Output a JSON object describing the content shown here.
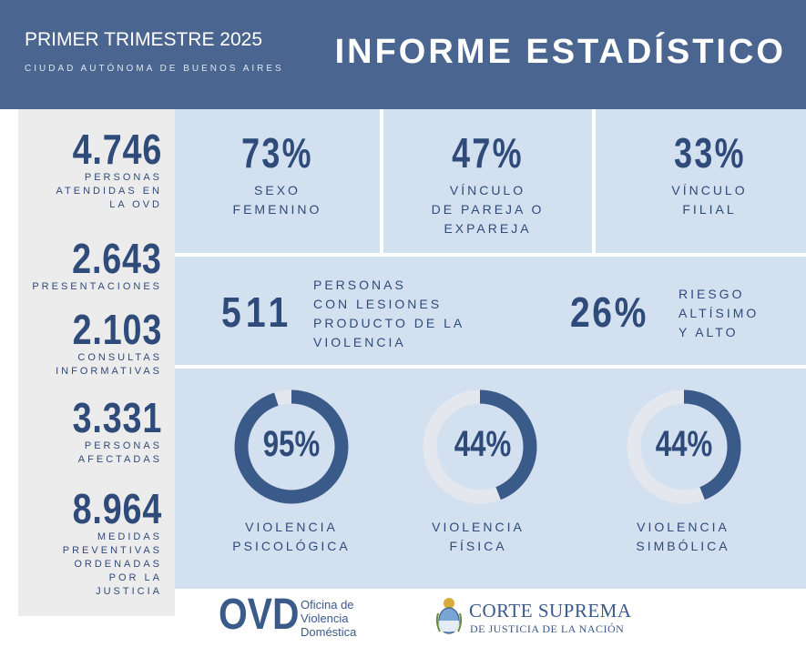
{
  "header": {
    "period": "PRIMER TRIMESTRE 2025",
    "city": "CIUDAD AUTÓNOMA DE BUENOS AIRES",
    "title": "INFORME ESTADÍSTICO"
  },
  "left_stats": [
    {
      "value": "4.746",
      "label": "PERSONAS\nATENDIDAS EN\nLA OVD"
    },
    {
      "value": "2.643",
      "label": "PRESENTACIONES"
    },
    {
      "value": "2.103",
      "label": "CONSULTAS\nINFORMATIVAS"
    },
    {
      "value": "3.331",
      "label": "PERSONAS\nAFECTADAS"
    },
    {
      "value": "8.964",
      "label": "MEDIDAS\nPREVENTIVAS\nORDENADAS\nPOR LA\nJUSTICIA"
    }
  ],
  "top_stats": [
    {
      "value": "73%",
      "label": "SEXO\nFEMENINO"
    },
    {
      "value": "47%",
      "label": "VÍNCULO\nDE PAREJA O\nEXPAREJA"
    },
    {
      "value": "33%",
      "label": "VÍNCULO\nFILIAL"
    }
  ],
  "middle": {
    "lesiones_value": "511",
    "lesiones_label": "PERSONAS\nCON LESIONES\nPRODUCTO DE LA\nVIOLENCIA",
    "riesgo_value": "26%",
    "riesgo_label": "RIESGO\nALTÍSIMO\nY ALTO"
  },
  "rings": [
    {
      "value_text": "95%",
      "fraction": 0.95,
      "label": "VIOLENCIA\nPSICOLÓGICA"
    },
    {
      "value_text": "44%",
      "fraction": 0.44,
      "label": "VIOLENCIA\nFÍSICA"
    },
    {
      "value_text": "44%",
      "fraction": 0.44,
      "label": "VIOLENCIA\nSIMBÓLICA"
    }
  ],
  "footer": {
    "ovd_logo": "OVD",
    "ovd_text": "Oficina de\nViolencia\nDoméstica",
    "cs_line1": "CORTE SUPREMA",
    "cs_line2": "DE JUSTICIA DE LA NACIÓN"
  },
  "colors": {
    "header_bg": "#4a6690",
    "panel_bg": "#d3e0ef",
    "left_bg": "#ececec",
    "ring_fill": "#3a5a8a",
    "ring_track": "#e4e8ee",
    "text": "#2f4b7a"
  }
}
